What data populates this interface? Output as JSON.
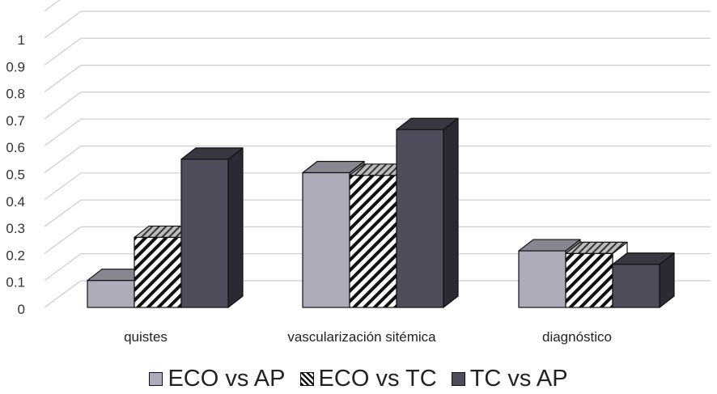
{
  "chart_data": {
    "type": "bar",
    "title": "",
    "xlabel": "",
    "ylabel": "",
    "categories": [
      "quistes",
      "vascularización sitémica",
      "diagnóstico"
    ],
    "series": [
      {
        "name": "ECO vs AP",
        "values": [
          0.1,
          0.5,
          0.21
        ],
        "color": "#aeacba",
        "pattern": "solid"
      },
      {
        "name": "ECO vs TC",
        "values": [
          0.26,
          0.49,
          0.2
        ],
        "color": "#ffffff",
        "pattern": "diagonal-hatch"
      },
      {
        "name": "TC vs AP",
        "values": [
          0.55,
          0.66,
          0.16
        ],
        "color": "#4f4d5b",
        "pattern": "solid"
      }
    ],
    "ylim": [
      0,
      1.1
    ],
    "yticks": [
      "0",
      "0.1",
      "0.2",
      "0.3",
      "0.4",
      "0.5",
      "0.6",
      "0.7",
      "0.8",
      "0.9",
      "1"
    ],
    "grid": true,
    "style": "3d-clustered-column",
    "legend_position": "bottom"
  }
}
